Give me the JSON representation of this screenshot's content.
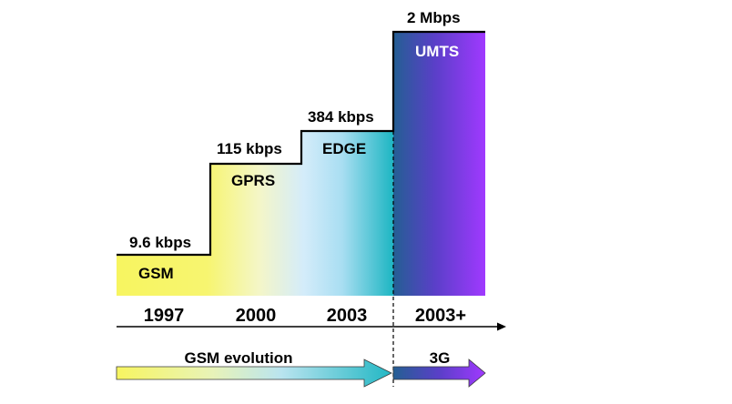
{
  "stages": [
    {
      "tech": "GSM",
      "speed": "9.6 kbps",
      "year": "1997"
    },
    {
      "tech": "GPRS",
      "speed": "115 kbps",
      "year": "2000"
    },
    {
      "tech": "EDGE",
      "speed": "384 kbps",
      "year": "2003"
    },
    {
      "tech": "UMTS",
      "speed": "2 Mbps",
      "year": "2003+"
    }
  ],
  "evolution": {
    "gsm_label": "GSM evolution",
    "g3_label": "3G"
  },
  "colors": {
    "gsm_start": "#f7f560",
    "gprs_mid": "#f4f6b8",
    "edge_light": "#cfe9fb",
    "edge_end": "#22b7c4",
    "umts_start": "#245f93",
    "umts_end": "#a039ff",
    "tech_text_dark": "#000000",
    "tech_text_umts": "#ffffff"
  }
}
